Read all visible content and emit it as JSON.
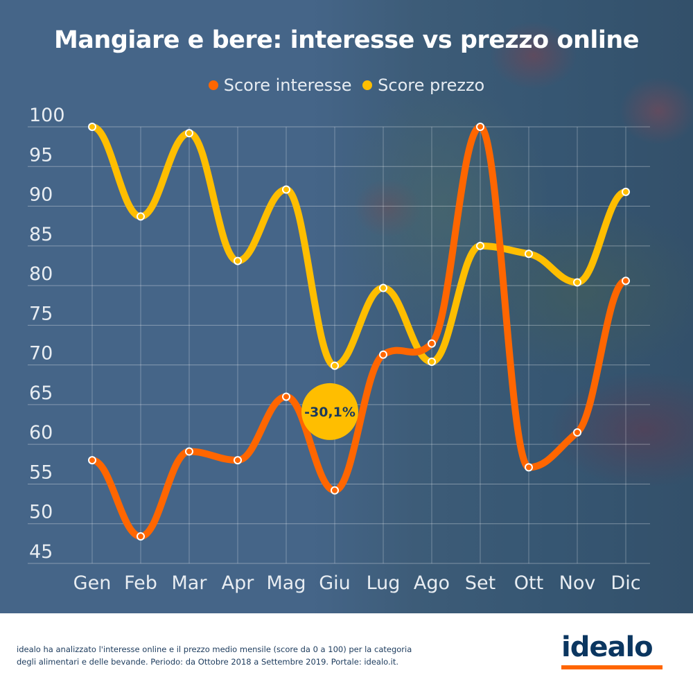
{
  "title": "Mangiare e bere: interesse vs prezzo online",
  "legend": [
    {
      "label": "Score interesse",
      "color": "#ff6600"
    },
    {
      "label": "Score prezzo",
      "color": "#ffbe00"
    }
  ],
  "annotation": {
    "label": "-30,1%",
    "month": "Giu",
    "color": "#ffbe00",
    "text_color": "#1b3a5c"
  },
  "footer": {
    "text": "idealo ha analizzato l'interesse online e il prezzo medio mensile (score da 0 a 100) per la categoria degli alimentari e delle bevande. Periodo: da Ottobre 2018 a Settembre 2019. Portale: idealo.it.",
    "logo": "idealo"
  },
  "colors": {
    "background": "#456588",
    "interesse": "#ff6600",
    "prezzo": "#ffbe00",
    "logo_text": "#0b3660",
    "logo_bar": "#ff6600"
  },
  "chart_data": {
    "type": "line",
    "title": "Mangiare e bere: interesse vs prezzo online",
    "xlabel": "",
    "ylabel": "",
    "categories": [
      "Gen",
      "Feb",
      "Mar",
      "Apr",
      "Mag",
      "Giu",
      "Lug",
      "Ago",
      "Set",
      "Ott",
      "Nov",
      "Dic"
    ],
    "yticks": [
      100,
      95,
      90,
      85,
      80,
      75,
      70,
      65,
      60,
      55,
      50,
      45
    ],
    "ylim": [
      45,
      100
    ],
    "grid": true,
    "legend_position": "top",
    "smooth": true,
    "series": [
      {
        "name": "Score interesse",
        "color": "#ff6600",
        "values": [
          58.0,
          48.4,
          59.1,
          58.0,
          66.0,
          54.2,
          71.3,
          72.7,
          100,
          57.1,
          61.5,
          80.6
        ]
      },
      {
        "name": "Score prezzo",
        "color": "#ffbe00",
        "values": [
          100,
          88.7,
          99.2,
          83.1,
          92.1,
          69.9,
          79.7,
          70.4,
          85.0,
          84.0,
          80.4,
          91.8
        ]
      }
    ],
    "annotations": [
      {
        "text": "-30,1%",
        "x": "Giu",
        "y": 65
      }
    ]
  }
}
